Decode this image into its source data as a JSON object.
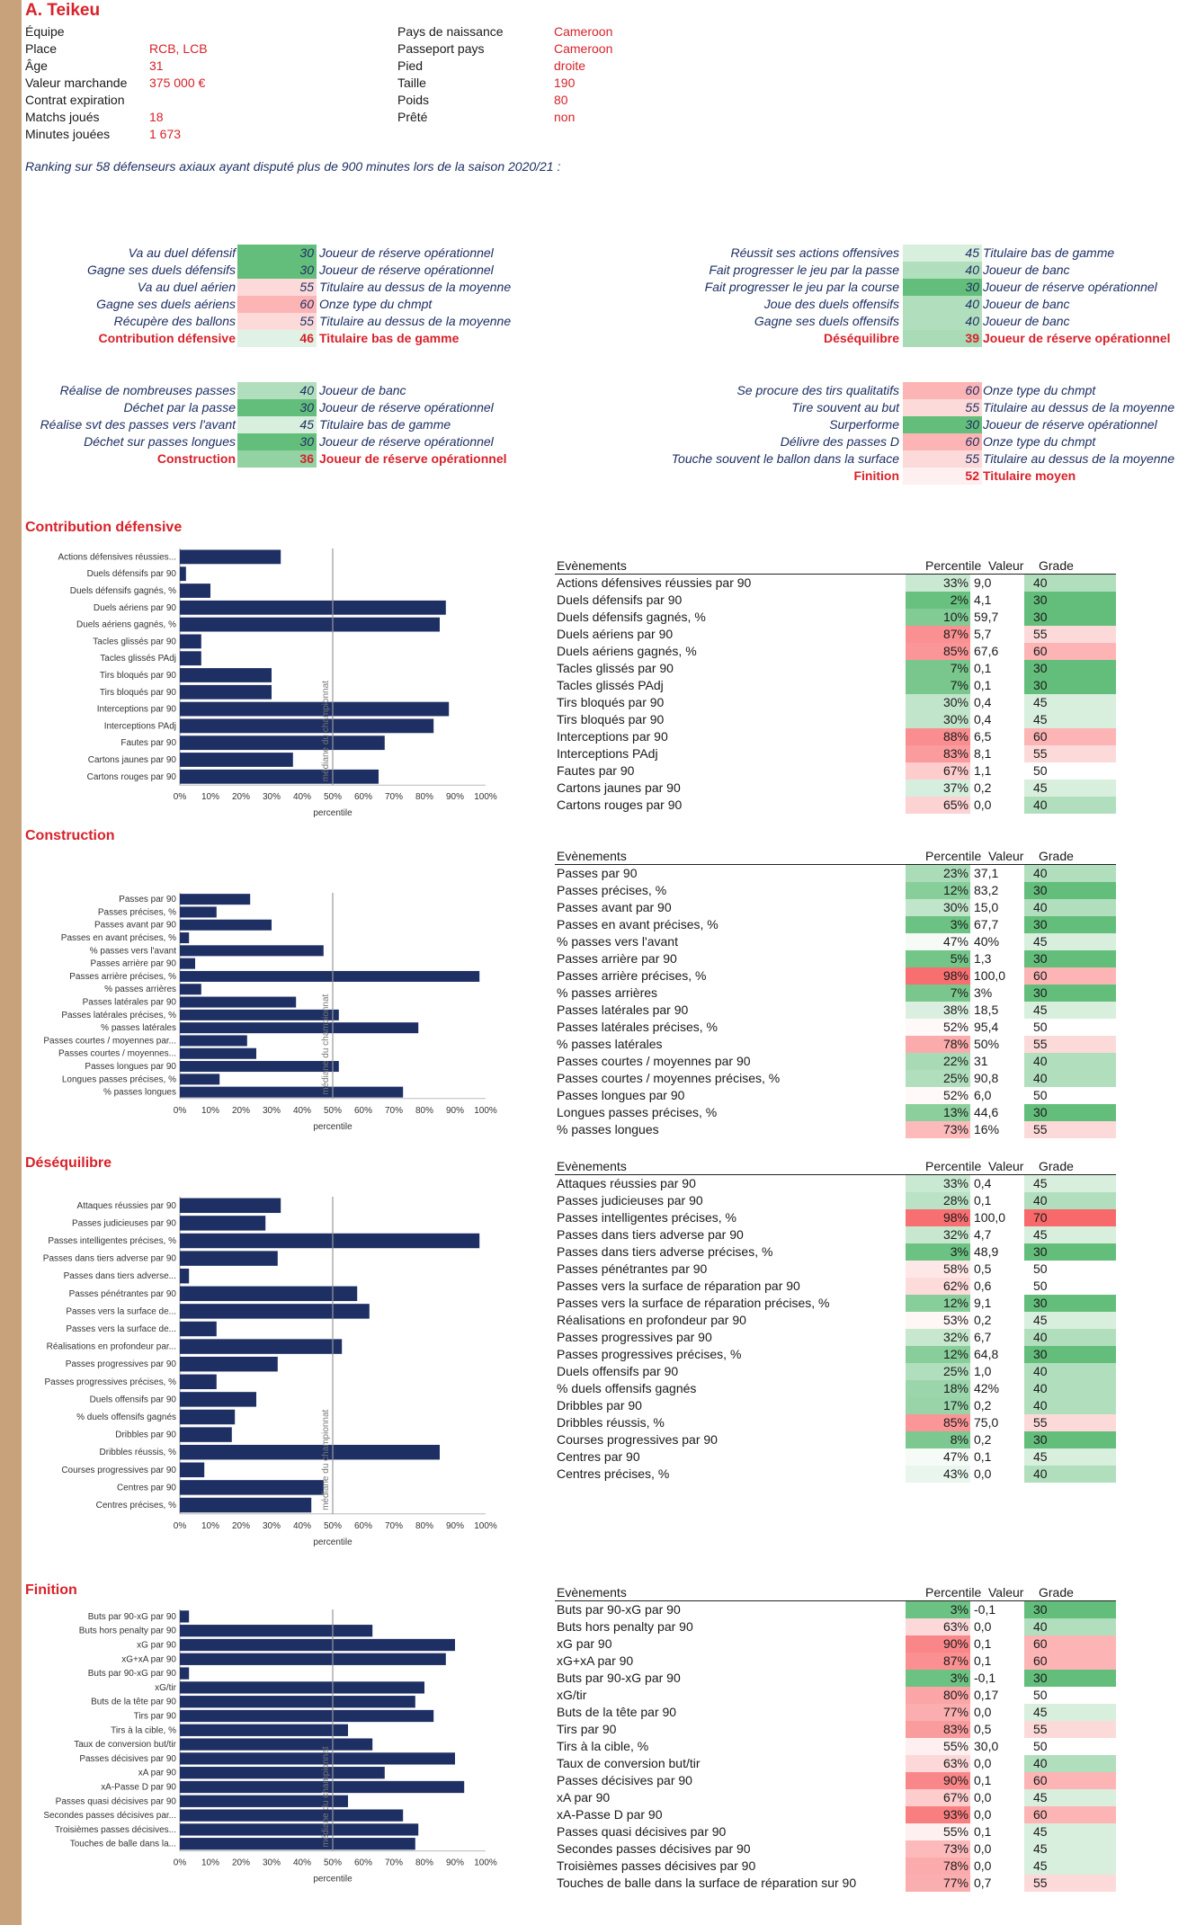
{
  "player": {
    "name": "A. Teikeu"
  },
  "info_left": [
    {
      "label": "Équipe",
      "value": ""
    },
    {
      "label": "Place",
      "value": "RCB, LCB"
    },
    {
      "label": "Âge",
      "value": "31"
    },
    {
      "label": "Valeur marchande",
      "value": "375 000 €"
    },
    {
      "label": "Contrat expiration",
      "value": ""
    },
    {
      "label": "Matchs joués",
      "value": "18"
    },
    {
      "label": "Minutes jouées",
      "value": "1 673"
    }
  ],
  "info_right": [
    {
      "label": "Pays de naissance",
      "value": "Cameroon"
    },
    {
      "label": "Passeport pays",
      "value": "Cameroon"
    },
    {
      "label": "Pied",
      "value": "droite"
    },
    {
      "label": "Taille",
      "value": "190"
    },
    {
      "label": "Poids",
      "value": "80"
    },
    {
      "label": "Prêté",
      "value": "non"
    }
  ],
  "ranking_note": "Ranking sur 58 défenseurs axiaux ayant disputé plus de 900 minutes lors de la saison 2020/21 :",
  "colors": {
    "accent_red": "#d8212a",
    "navy": "#1e2f63",
    "stripe": "#c8a27a",
    "green_dark": "#63be7b",
    "red_dark": "#f8696b"
  },
  "ranking_blocks": [
    {
      "rows": [
        {
          "label": "Va au duel défensif",
          "grade": "30",
          "text": "Joueur de réserve opérationnel"
        },
        {
          "label": "Gagne ses duels défensifs",
          "grade": "30",
          "text": "Joueur de réserve opérationnel"
        },
        {
          "label": "Va au duel aérien",
          "grade": "55",
          "text": "Titulaire au dessus de la moyenne"
        },
        {
          "label": "Gagne ses duels aériens",
          "grade": "60",
          "text": "Onze type du chmpt"
        },
        {
          "label": "Récupère des ballons",
          "grade": "55",
          "text": "Titulaire au dessus de la moyenne"
        }
      ],
      "total": {
        "label": "Contribution défensive",
        "grade": "46",
        "text": "Titulaire bas de gamme"
      }
    },
    {
      "rows": [
        {
          "label": "Réussit ses actions offensives",
          "grade": "45",
          "text": "Titulaire bas de gamme"
        },
        {
          "label": "Fait progresser le jeu par la passe",
          "grade": "40",
          "text": "Joueur de banc"
        },
        {
          "label": "Fait progresser le jeu par la course",
          "grade": "30",
          "text": "Joueur de réserve opérationnel"
        },
        {
          "label": "Joue des duels offensifs",
          "grade": "40",
          "text": "Joueur de banc"
        },
        {
          "label": "Gagne ses duels offensifs",
          "grade": "40",
          "text": "Joueur de banc"
        }
      ],
      "total": {
        "label": "Déséquilibre",
        "grade": "39",
        "text": "Joueur de réserve opérationnel"
      }
    },
    {
      "rows": [
        {
          "label": "Réalise de nombreuses passes",
          "grade": "40",
          "text": "Joueur de banc"
        },
        {
          "label": "Déchet par la passe",
          "grade": "30",
          "text": "Joueur de réserve opérationnel"
        },
        {
          "label": "Réalise svt des passes vers l'avant",
          "grade": "45",
          "text": "Titulaire bas de gamme"
        },
        {
          "label": "Déchet sur passes longues",
          "grade": "30",
          "text": "Joueur de réserve opérationnel"
        }
      ],
      "total": {
        "label": "Construction",
        "grade": "36",
        "text": "Joueur de réserve opérationnel"
      }
    },
    {
      "rows": [
        {
          "label": "Se procure des tirs qualitatifs",
          "grade": "60",
          "text": "Onze type du chmpt"
        },
        {
          "label": "Tire souvent au but",
          "grade": "55",
          "text": "Titulaire au dessus de la moyenne"
        },
        {
          "label": "Surperforme",
          "grade": "30",
          "text": "Joueur de réserve opérationnel"
        },
        {
          "label": "Délivre des passes D",
          "grade": "60",
          "text": "Onze type du chmpt"
        },
        {
          "label": "Touche souvent le ballon dans la surface",
          "grade": "55",
          "text": "Titulaire au dessus de la moyenne"
        }
      ],
      "total": {
        "label": "Finition",
        "grade": "52",
        "text": "Titulaire moyen"
      }
    }
  ],
  "table_headers": {
    "event": "Evènements",
    "percentile": "Percentile",
    "value": "Valeur",
    "grade": "Grade"
  },
  "chart_common": {
    "xlabel": "percentile",
    "median_label": "médiane du championnat",
    "ticks": [
      "0%",
      "10%",
      "20%",
      "30%",
      "40%",
      "50%",
      "60%",
      "70%",
      "80%",
      "90%",
      "100%"
    ]
  },
  "chart_data": [
    {
      "type": "bar",
      "orientation": "horizontal",
      "title": "Contribution défensive",
      "xlim": [
        0,
        100
      ],
      "median": 50,
      "categories": [
        "Actions défensives réussies...",
        "Duels défensifs par 90",
        "Duels défensifs gagnés, %",
        "Duels aériens par 90",
        "Duels aériens gagnés, %",
        "Tacles glissés par 90",
        "Tacles glissés PAdj",
        "Tirs bloqués par 90",
        "Tirs bloqués par 90",
        "Interceptions par 90",
        "Interceptions PAdj",
        "Fautes par 90",
        "Cartons jaunes par 90",
        "Cartons rouges par 90"
      ],
      "values": [
        33,
        2,
        10,
        87,
        85,
        7,
        7,
        30,
        30,
        88,
        83,
        67,
        37,
        65
      ],
      "table": [
        {
          "event": "Actions défensives réussies par 90",
          "percentile": "33%",
          "value": "9,0",
          "grade": "40"
        },
        {
          "event": "Duels défensifs par 90",
          "percentile": "2%",
          "value": "4,1",
          "grade": "30"
        },
        {
          "event": "Duels défensifs gagnés, %",
          "percentile": "10%",
          "value": "59,7",
          "grade": "30"
        },
        {
          "event": "Duels aériens par 90",
          "percentile": "87%",
          "value": "5,7",
          "grade": "55"
        },
        {
          "event": "Duels aériens gagnés, %",
          "percentile": "85%",
          "value": "67,6",
          "grade": "60"
        },
        {
          "event": "Tacles glissés par 90",
          "percentile": "7%",
          "value": "0,1",
          "grade": "30"
        },
        {
          "event": "Tacles glissés PAdj",
          "percentile": "7%",
          "value": "0,1",
          "grade": "30"
        },
        {
          "event": "Tirs bloqués par 90",
          "percentile": "30%",
          "value": "0,4",
          "grade": "45"
        },
        {
          "event": "Tirs bloqués par 90",
          "percentile": "30%",
          "value": "0,4",
          "grade": "45"
        },
        {
          "event": "Interceptions par 90",
          "percentile": "88%",
          "value": "6,5",
          "grade": "60"
        },
        {
          "event": "Interceptions PAdj",
          "percentile": "83%",
          "value": "8,1",
          "grade": "55"
        },
        {
          "event": "Fautes par 90",
          "percentile": "67%",
          "value": "1,1",
          "grade": "50"
        },
        {
          "event": "Cartons jaunes par 90",
          "percentile": "37%",
          "value": "0,2",
          "grade": "45"
        },
        {
          "event": "Cartons rouges par 90",
          "percentile": "65%",
          "value": "0,0",
          "grade": "40"
        }
      ]
    },
    {
      "type": "bar",
      "orientation": "horizontal",
      "title": "Construction",
      "xlim": [
        0,
        100
      ],
      "median": 50,
      "categories": [
        "Passes par 90",
        "Passes précises, %",
        "Passes avant par 90",
        "Passes en avant précises, %",
        "% passes vers l'avant",
        "Passes arrière par 90",
        "Passes arrière précises, %",
        "% passes arrières",
        "Passes latérales par 90",
        "Passes latérales précises, %",
        "% passes latérales",
        "Passes courtes / moyennes par...",
        "Passes courtes / moyennes...",
        "Passes longues par 90",
        "Longues passes précises, %",
        "% passes longues"
      ],
      "values": [
        23,
        12,
        30,
        3,
        47,
        5,
        98,
        7,
        38,
        52,
        78,
        22,
        25,
        52,
        13,
        73
      ],
      "table": [
        {
          "event": "Passes par 90",
          "percentile": "23%",
          "value": "37,1",
          "grade": "40"
        },
        {
          "event": "Passes précises, %",
          "percentile": "12%",
          "value": "83,2",
          "grade": "30"
        },
        {
          "event": "Passes avant par 90",
          "percentile": "30%",
          "value": "15,0",
          "grade": "40"
        },
        {
          "event": "Passes en avant précises, %",
          "percentile": "3%",
          "value": "67,7",
          "grade": "30"
        },
        {
          "event": "% passes vers l'avant",
          "percentile": "47%",
          "value": "40%",
          "grade": "45"
        },
        {
          "event": "Passes arrière par 90",
          "percentile": "5%",
          "value": "1,3",
          "grade": "30"
        },
        {
          "event": "Passes arrière précises, %",
          "percentile": "98%",
          "value": "100,0",
          "grade": "60"
        },
        {
          "event": "% passes arrières",
          "percentile": "7%",
          "value": "3%",
          "grade": "30"
        },
        {
          "event": "Passes latérales par 90",
          "percentile": "38%",
          "value": "18,5",
          "grade": "45"
        },
        {
          "event": "Passes latérales précises, %",
          "percentile": "52%",
          "value": "95,4",
          "grade": "50"
        },
        {
          "event": "% passes latérales",
          "percentile": "78%",
          "value": "50%",
          "grade": "55"
        },
        {
          "event": "Passes courtes / moyennes par 90",
          "percentile": "22%",
          "value": "31",
          "grade": "40"
        },
        {
          "event": "Passes courtes / moyennes précises, %",
          "percentile": "25%",
          "value": "90,8",
          "grade": "40"
        },
        {
          "event": "Passes longues par 90",
          "percentile": "52%",
          "value": "6,0",
          "grade": "50"
        },
        {
          "event": "Longues passes précises, %",
          "percentile": "13%",
          "value": "44,6",
          "grade": "30"
        },
        {
          "event": "% passes longues",
          "percentile": "73%",
          "value": "16%",
          "grade": "55"
        }
      ]
    },
    {
      "type": "bar",
      "orientation": "horizontal",
      "title": "Déséquilibre",
      "xlim": [
        0,
        100
      ],
      "median": 50,
      "categories": [
        "Attaques réussies par 90",
        "Passes judicieuses par 90",
        "Passes intelligentes précises, %",
        "Passes dans tiers adverse par 90",
        "Passes dans tiers adverse...",
        "Passes pénétrantes par 90",
        "Passes vers la surface de...",
        "Passes vers la surface de...",
        "Réalisations en profondeur par...",
        "Passes progressives par 90",
        "Passes progressives précises, %",
        "Duels offensifs par 90",
        "% duels offensifs gagnés",
        "Dribbles par 90",
        "Dribbles réussis, %",
        "Courses progressives par 90",
        "Centres par 90",
        "Centres précises, %"
      ],
      "values": [
        33,
        28,
        98,
        32,
        3,
        58,
        62,
        12,
        53,
        32,
        12,
        25,
        18,
        17,
        85,
        8,
        47,
        43
      ],
      "table": [
        {
          "event": "Attaques réussies par 90",
          "percentile": "33%",
          "value": "0,4",
          "grade": "45"
        },
        {
          "event": "Passes judicieuses par 90",
          "percentile": "28%",
          "value": "0,1",
          "grade": "40"
        },
        {
          "event": "Passes intelligentes précises, %",
          "percentile": "98%",
          "value": "100,0",
          "grade": "70"
        },
        {
          "event": "Passes dans tiers adverse par 90",
          "percentile": "32%",
          "value": "4,7",
          "grade": "45"
        },
        {
          "event": "Passes dans tiers adverse précises, %",
          "percentile": "3%",
          "value": "48,9",
          "grade": "30"
        },
        {
          "event": "Passes pénétrantes par 90",
          "percentile": "58%",
          "value": "0,5",
          "grade": "50"
        },
        {
          "event": "Passes vers la surface de réparation par 90",
          "percentile": "62%",
          "value": "0,6",
          "grade": "50"
        },
        {
          "event": "Passes vers la surface de réparation précises, %",
          "percentile": "12%",
          "value": "9,1",
          "grade": "30"
        },
        {
          "event": "Réalisations en profondeur par 90",
          "percentile": "53%",
          "value": "0,2",
          "grade": "45"
        },
        {
          "event": "Passes progressives par 90",
          "percentile": "32%",
          "value": "6,7",
          "grade": "40"
        },
        {
          "event": "Passes progressives précises, %",
          "percentile": "12%",
          "value": "64,8",
          "grade": "30"
        },
        {
          "event": "Duels offensifs par 90",
          "percentile": "25%",
          "value": "1,0",
          "grade": "40"
        },
        {
          "event": "% duels offensifs gagnés",
          "percentile": "18%",
          "value": "42%",
          "grade": "40"
        },
        {
          "event": "Dribbles par 90",
          "percentile": "17%",
          "value": "0,2",
          "grade": "40"
        },
        {
          "event": "Dribbles réussis, %",
          "percentile": "85%",
          "value": "75,0",
          "grade": "55"
        },
        {
          "event": "Courses progressives par 90",
          "percentile": "8%",
          "value": "0,2",
          "grade": "30"
        },
        {
          "event": "Centres par 90",
          "percentile": "47%",
          "value": "0,1",
          "grade": "45"
        },
        {
          "event": "Centres précises, %",
          "percentile": "43%",
          "value": "0,0",
          "grade": "40"
        }
      ]
    },
    {
      "type": "bar",
      "orientation": "horizontal",
      "title": "Finition",
      "xlim": [
        0,
        100
      ],
      "median": 50,
      "categories": [
        "Buts par 90-xG par 90",
        "Buts hors penalty par 90",
        "xG par 90",
        "xG+xA par 90",
        "Buts par 90-xG par 90",
        "xG/tir",
        "Buts de la tête par 90",
        "Tirs par 90",
        "Tirs à la cible, %",
        "Taux de conversion but/tir",
        "Passes décisives par 90",
        "xA par 90",
        "xA-Passe D par 90",
        "Passes quasi décisives par 90",
        "Secondes passes décisives par...",
        "Troisièmes passes décisives...",
        "Touches de balle dans la..."
      ],
      "values": [
        3,
        63,
        90,
        87,
        3,
        80,
        77,
        83,
        55,
        63,
        90,
        67,
        93,
        55,
        73,
        78,
        77
      ],
      "table": [
        {
          "event": "Buts par 90-xG par 90",
          "percentile": "3%",
          "value": "-0,1",
          "grade": "30"
        },
        {
          "event": "Buts hors penalty par 90",
          "percentile": "63%",
          "value": "0,0",
          "grade": "40"
        },
        {
          "event": "xG par 90",
          "percentile": "90%",
          "value": "0,1",
          "grade": "60"
        },
        {
          "event": "xG+xA par 90",
          "percentile": "87%",
          "value": "0,1",
          "grade": "60"
        },
        {
          "event": "Buts par 90-xG par 90",
          "percentile": "3%",
          "value": "-0,1",
          "grade": "30"
        },
        {
          "event": "xG/tir",
          "percentile": "80%",
          "value": "0,17",
          "grade": "50"
        },
        {
          "event": "Buts de la tête par 90",
          "percentile": "77%",
          "value": "0,0",
          "grade": "45"
        },
        {
          "event": "Tirs par 90",
          "percentile": "83%",
          "value": "0,5",
          "grade": "55"
        },
        {
          "event": "Tirs à la cible, %",
          "percentile": "55%",
          "value": "30,0",
          "grade": "50"
        },
        {
          "event": "Taux de conversion but/tir",
          "percentile": "63%",
          "value": "0,0",
          "grade": "40"
        },
        {
          "event": "Passes décisives par 90",
          "percentile": "90%",
          "value": "0,1",
          "grade": "60"
        },
        {
          "event": "xA par 90",
          "percentile": "67%",
          "value": "0,0",
          "grade": "45"
        },
        {
          "event": "xA-Passe D par 90",
          "percentile": "93%",
          "value": "0,0",
          "grade": "60"
        },
        {
          "event": "Passes quasi décisives par 90",
          "percentile": "55%",
          "value": "0,1",
          "grade": "45"
        },
        {
          "event": "Secondes passes décisives par 90",
          "percentile": "73%",
          "value": "0,0",
          "grade": "45"
        },
        {
          "event": "Troisièmes passes décisives par 90",
          "percentile": "78%",
          "value": "0,0",
          "grade": "45"
        },
        {
          "event": "Touches de balle dans la surface de réparation sur 90",
          "percentile": "77%",
          "value": "0,7",
          "grade": "55"
        }
      ]
    }
  ]
}
